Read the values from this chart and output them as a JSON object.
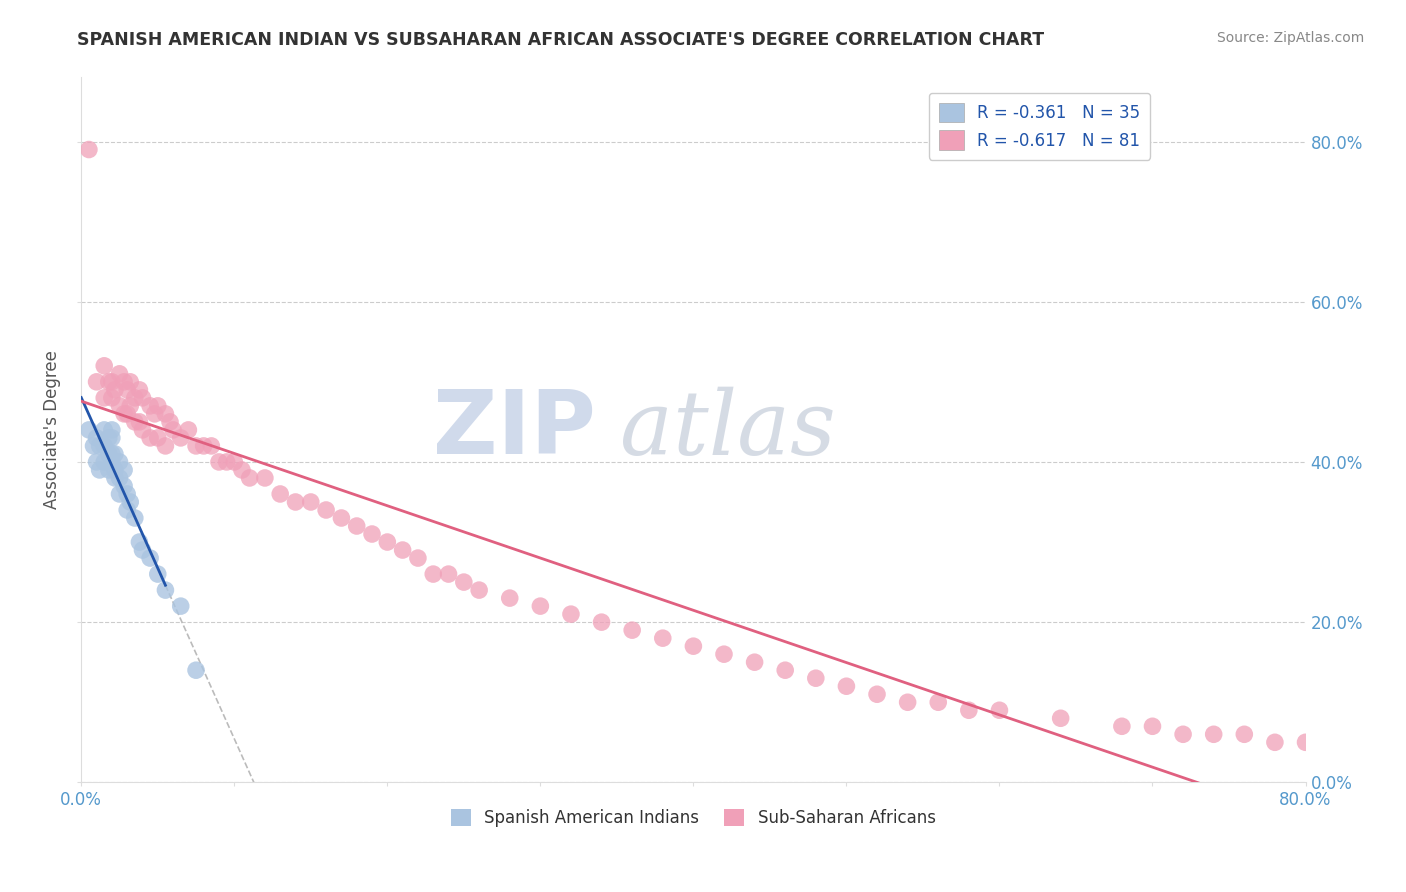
{
  "title": "SPANISH AMERICAN INDIAN VS SUBSAHARAN AFRICAN ASSOCIATE'S DEGREE CORRELATION CHART",
  "source": "Source: ZipAtlas.com",
  "ylabel": "Associate's Degree",
  "xlim": [
    0.0,
    0.8
  ],
  "ylim": [
    0.0,
    0.88
  ],
  "ytick_vals": [
    0.0,
    0.2,
    0.4,
    0.6,
    0.8
  ],
  "xtick_vals": [
    0.0,
    0.1,
    0.2,
    0.3,
    0.4,
    0.5,
    0.6,
    0.7,
    0.8
  ],
  "xtick_labels_show": {
    "0.0": "0.0%",
    "0.80": "80.0%"
  },
  "legend_blue_label": "R = -0.361   N = 35",
  "legend_pink_label": "R = -0.617   N = 81",
  "blue_color": "#aac4e0",
  "pink_color": "#f0a0b8",
  "blue_line_color": "#2255aa",
  "pink_line_color": "#e06080",
  "right_tick_color": "#5599cc",
  "bottom_label_color": "#5599cc",
  "watermark_zip_color": "#b8c8e0",
  "watermark_atlas_color": "#c0c8d8",
  "blue_scatter_x": [
    0.005,
    0.008,
    0.01,
    0.01,
    0.012,
    0.012,
    0.015,
    0.015,
    0.015,
    0.018,
    0.018,
    0.018,
    0.02,
    0.02,
    0.02,
    0.02,
    0.022,
    0.022,
    0.022,
    0.025,
    0.025,
    0.025,
    0.028,
    0.028,
    0.03,
    0.03,
    0.032,
    0.035,
    0.038,
    0.04,
    0.045,
    0.05,
    0.055,
    0.065,
    0.075
  ],
  "blue_scatter_y": [
    0.44,
    0.42,
    0.43,
    0.4,
    0.42,
    0.39,
    0.44,
    0.42,
    0.4,
    0.43,
    0.41,
    0.39,
    0.44,
    0.43,
    0.41,
    0.4,
    0.41,
    0.39,
    0.38,
    0.4,
    0.38,
    0.36,
    0.39,
    0.37,
    0.36,
    0.34,
    0.35,
    0.33,
    0.3,
    0.29,
    0.28,
    0.26,
    0.24,
    0.22,
    0.14
  ],
  "pink_scatter_x": [
    0.005,
    0.01,
    0.015,
    0.015,
    0.018,
    0.02,
    0.02,
    0.022,
    0.025,
    0.025,
    0.028,
    0.028,
    0.03,
    0.03,
    0.032,
    0.032,
    0.035,
    0.035,
    0.038,
    0.038,
    0.04,
    0.04,
    0.045,
    0.045,
    0.048,
    0.05,
    0.05,
    0.055,
    0.055,
    0.058,
    0.06,
    0.065,
    0.07,
    0.075,
    0.08,
    0.085,
    0.09,
    0.095,
    0.1,
    0.105,
    0.11,
    0.12,
    0.13,
    0.14,
    0.15,
    0.16,
    0.17,
    0.18,
    0.19,
    0.2,
    0.21,
    0.22,
    0.23,
    0.24,
    0.25,
    0.26,
    0.28,
    0.3,
    0.32,
    0.34,
    0.36,
    0.38,
    0.4,
    0.42,
    0.44,
    0.46,
    0.48,
    0.5,
    0.52,
    0.54,
    0.56,
    0.58,
    0.6,
    0.64,
    0.68,
    0.7,
    0.72,
    0.74,
    0.76,
    0.78,
    0.8
  ],
  "pink_scatter_y": [
    0.79,
    0.5,
    0.52,
    0.48,
    0.5,
    0.5,
    0.48,
    0.49,
    0.51,
    0.47,
    0.5,
    0.46,
    0.49,
    0.46,
    0.5,
    0.47,
    0.48,
    0.45,
    0.49,
    0.45,
    0.48,
    0.44,
    0.47,
    0.43,
    0.46,
    0.47,
    0.43,
    0.46,
    0.42,
    0.45,
    0.44,
    0.43,
    0.44,
    0.42,
    0.42,
    0.42,
    0.4,
    0.4,
    0.4,
    0.39,
    0.38,
    0.38,
    0.36,
    0.35,
    0.35,
    0.34,
    0.33,
    0.32,
    0.31,
    0.3,
    0.29,
    0.28,
    0.26,
    0.26,
    0.25,
    0.24,
    0.23,
    0.22,
    0.21,
    0.2,
    0.19,
    0.18,
    0.17,
    0.16,
    0.15,
    0.14,
    0.13,
    0.12,
    0.11,
    0.1,
    0.1,
    0.09,
    0.09,
    0.08,
    0.07,
    0.07,
    0.06,
    0.06,
    0.06,
    0.05,
    0.05
  ]
}
